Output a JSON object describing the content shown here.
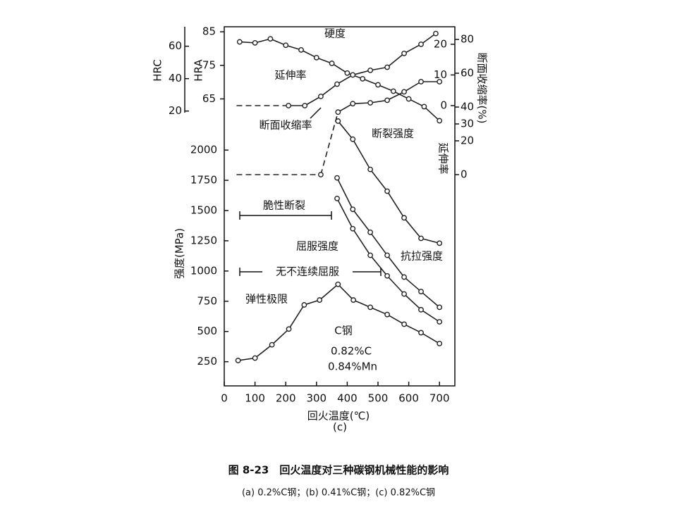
{
  "chart_data": {
    "type": "line",
    "xlabel": "回火温度(℃)",
    "ylabel": "强度(MPa)",
    "xlim": [
      0,
      750
    ],
    "xticks": [
      0,
      100,
      200,
      300,
      400,
      500,
      600,
      700
    ],
    "ylim": [
      50,
      3020
    ],
    "yticks": [
      250,
      500,
      750,
      1000,
      1250,
      1500,
      1750,
      2000
    ],
    "axes": {
      "hra": {
        "label": "HRA",
        "lim": [
          63,
          86.5
        ],
        "ticks": [
          65,
          75,
          85
        ]
      },
      "hrc": {
        "label": "HRC",
        "lim": [
          19,
          72
        ],
        "ticks": [
          20,
          40,
          60
        ]
      },
      "ra": {
        "label": "断面收缩率(%)",
        "lim": [
          0,
          87.5
        ],
        "ticks": [
          80,
          60,
          40,
          30,
          20,
          0
        ]
      },
      "el": {
        "label": "延伸率",
        "lim": [
          0,
          25.7
        ],
        "ticks": [
          20,
          10,
          0
        ]
      }
    },
    "series": [
      {
        "name": "硬度",
        "axis": "hra",
        "color": "#222222",
        "x": [
          50,
          100,
          150,
          200,
          250,
          300,
          350,
          400,
          450,
          500,
          550,
          600,
          650,
          700
        ],
        "values": [
          82,
          81.7,
          82.9,
          81,
          79.6,
          77.3,
          75.6,
          72.7,
          71,
          69.2,
          67.3,
          65,
          62.7,
          58.5
        ],
        "markers": [
          true,
          true,
          true,
          true,
          true,
          true,
          true,
          true,
          true,
          true,
          true,
          true,
          true,
          true
        ],
        "line_styles": [
          "solid",
          "solid",
          "solid",
          "solid",
          "solid",
          "solid",
          "solid",
          "solid",
          "solid",
          "solid",
          "solid",
          "solid",
          "solid"
        ]
      },
      {
        "name": "延伸率",
        "axis": "el",
        "color": "#222222",
        "x": [
          40,
          209,
          262,
          314,
          367,
          418,
          475,
          530,
          585,
          640,
          688
        ],
        "values": [
          0,
          0,
          0,
          3,
          7,
          10,
          11.5,
          12.5,
          17,
          20,
          23.5
        ],
        "markers": [
          false,
          true,
          true,
          true,
          true,
          true,
          true,
          true,
          true,
          true,
          true
        ],
        "line_styles": [
          "dashed",
          "solid",
          "solid",
          "solid",
          "solid",
          "solid",
          "solid",
          "solid",
          "solid",
          "solid"
        ]
      },
      {
        "name": "断面收缩率",
        "axis": "ra",
        "color": "#222222",
        "x": [
          40,
          314,
          370,
          418,
          475,
          530,
          585,
          640,
          700
        ],
        "values": [
          0,
          0,
          37,
          42,
          42.5,
          44,
          49,
          55,
          55
        ],
        "markers": [
          false,
          true,
          true,
          true,
          true,
          true,
          true,
          true,
          true
        ],
        "line_styles": [
          "dashed",
          "dashed",
          "solid",
          "solid",
          "solid",
          "solid",
          "solid",
          "solid"
        ]
      },
      {
        "name": "断裂强度",
        "axis": "y",
        "color": "#222222",
        "x": [
          370,
          418,
          475,
          530,
          585,
          640,
          700
        ],
        "values": [
          2240,
          2090,
          1840,
          1660,
          1440,
          1270,
          1230
        ],
        "markers": [
          true,
          true,
          true,
          true,
          true,
          true,
          true
        ],
        "line_styles": [
          "solid",
          "solid",
          "solid",
          "solid",
          "solid",
          "solid"
        ]
      },
      {
        "name": "屈服强度",
        "axis": "y",
        "color": "#222222",
        "x": [
          367,
          418,
          475,
          530,
          585,
          640,
          700
        ],
        "values": [
          1600,
          1350,
          1130,
          960,
          810,
          680,
          580
        ],
        "markers": [
          true,
          true,
          true,
          true,
          true,
          true,
          true
        ],
        "line_styles": [
          "solid",
          "solid",
          "solid",
          "solid",
          "solid",
          "solid"
        ]
      },
      {
        "name": "抗拉强度",
        "axis": "y",
        "color": "#222222",
        "x": [
          367,
          418,
          475,
          530,
          585,
          640,
          700
        ],
        "values": [
          1770,
          1510,
          1320,
          1130,
          950,
          830,
          700
        ],
        "markers": [
          true,
          true,
          true,
          true,
          true,
          true,
          true
        ],
        "line_styles": [
          "solid",
          "solid",
          "solid",
          "solid",
          "solid",
          "solid"
        ]
      },
      {
        "name": "弹性极限",
        "axis": "y",
        "color": "#222222",
        "x": [
          45,
          100,
          155,
          210,
          260,
          310,
          370,
          420,
          475,
          530,
          585,
          640,
          700
        ],
        "values": [
          260,
          280,
          390,
          520,
          720,
          760,
          890,
          760,
          700,
          640,
          560,
          490,
          400
        ],
        "markers": [
          true,
          true,
          true,
          true,
          true,
          true,
          true,
          true,
          true,
          true,
          true,
          true,
          true
        ],
        "line_styles": [
          "solid",
          "solid",
          "solid",
          "solid",
          "solid",
          "solid",
          "solid",
          "solid",
          "solid",
          "solid",
          "solid",
          "solid"
        ]
      }
    ],
    "annotations": [
      "脆性断裂",
      "无不连续屈服",
      "C钢",
      "0.82%C",
      "0.84%Mn",
      "(c)"
    ],
    "caption": "图 8-23　回火温度对三种碳钢机械性能的影响",
    "subcaption": "(a) 0.2%C钢；(b) 0.41%C钢；(c) 0.82%C钢"
  }
}
